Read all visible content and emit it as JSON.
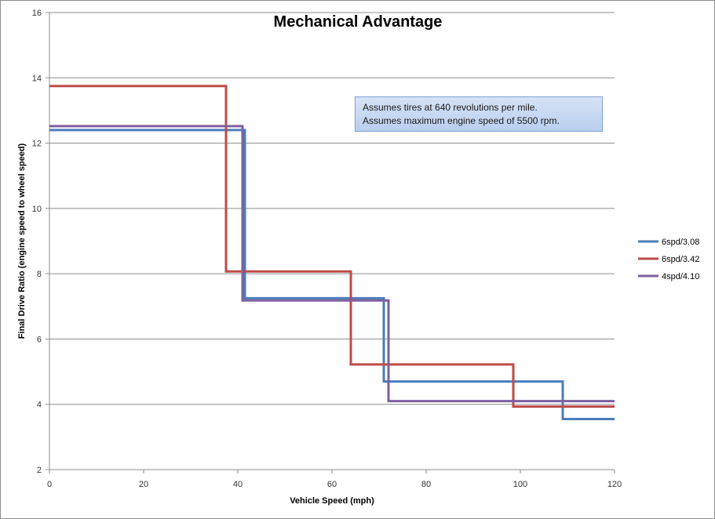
{
  "chart_data": {
    "type": "line",
    "title": "Mechanical Advantage",
    "xlabel": "Vehicle Speed (mph)",
    "ylabel": "Final Drive Ratio (engine speed to wheel speed)",
    "xlim": [
      0,
      120
    ],
    "ylim": [
      2,
      16
    ],
    "xticks": [
      0,
      20,
      40,
      60,
      80,
      100,
      120
    ],
    "yticks": [
      2,
      4,
      6,
      8,
      10,
      12,
      14,
      16
    ],
    "grid": "horizontal major gridlines",
    "legend_position": "right",
    "annotation": [
      "Assumes tires at 640 revolutions per mile.",
      "Assumes maximum engine speed of 5500 rpm."
    ],
    "series": [
      {
        "name": "6spd/3.08",
        "color": "#4a7ebb",
        "points": [
          [
            0,
            12.4
          ],
          [
            41.5,
            12.4
          ],
          [
            41.5,
            7.25
          ],
          [
            71,
            7.25
          ],
          [
            71,
            4.7
          ],
          [
            109,
            4.7
          ],
          [
            109,
            3.55
          ],
          [
            120,
            3.55
          ]
        ]
      },
      {
        "name": "6spd/3.42",
        "color": "#be4b48",
        "points": [
          [
            0,
            13.75
          ],
          [
            37.5,
            13.75
          ],
          [
            37.5,
            8.07
          ],
          [
            64,
            8.07
          ],
          [
            64,
            5.22
          ],
          [
            98.5,
            5.22
          ],
          [
            98.5,
            3.93
          ],
          [
            120,
            3.93
          ]
        ]
      },
      {
        "name": "4spd/4.10",
        "color": "#7d5fa0",
        "points": [
          [
            0,
            12.52
          ],
          [
            41,
            12.52
          ],
          [
            41,
            7.18
          ],
          [
            72,
            7.18
          ],
          [
            72,
            4.1
          ],
          [
            120,
            4.1
          ]
        ]
      }
    ]
  }
}
